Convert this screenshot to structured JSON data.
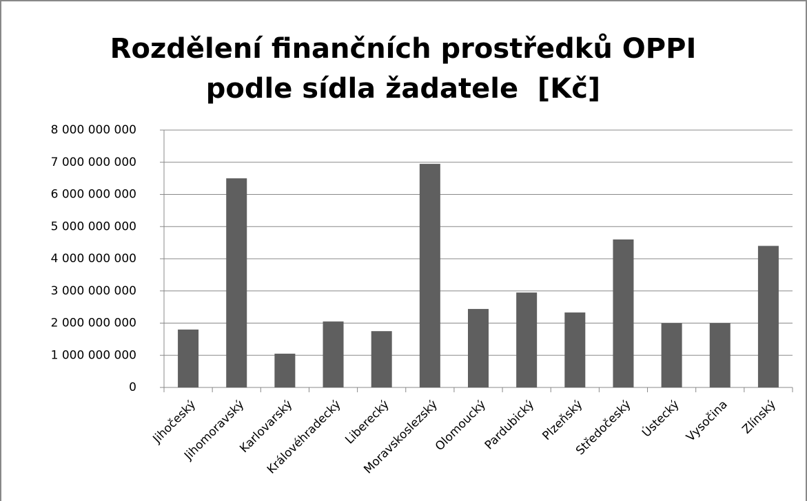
{
  "chart_data": {
    "type": "bar",
    "title": "Rozdělení finančních prostředků OPPI podle sídla žadatele  [Kč]",
    "categories": [
      "Jihočeský",
      "Jihomoravský",
      "Karlovarský",
      "Královéhradecký",
      "Liberecký",
      "Moravskoslezský",
      "Olomoucký",
      "Pardubický",
      "Plzeňský",
      "Středočeský",
      "Ústecký",
      "Vysočina",
      "Zlínský"
    ],
    "values": [
      1800000000,
      6500000000,
      1050000000,
      2050000000,
      1750000000,
      6950000000,
      2440000000,
      2950000000,
      2330000000,
      4600000000,
      2000000000,
      2000000000,
      4400000000
    ],
    "color": "#5f5f5f",
    "ylim": [
      0,
      8000000000
    ],
    "yticks": [
      0,
      {
        "value": 1000000000,
        "label": "1 000 000 000"
      },
      {
        "value": 2000000000,
        "label": "2 000 000 000"
      },
      {
        "value": 3000000000,
        "label": "3 000 000 000"
      },
      {
        "value": 4000000000,
        "label": "4 000 000 000"
      },
      {
        "value": 5000000000,
        "label": "5 000 000 000"
      },
      {
        "value": 6000000000,
        "label": "6 000 000 000"
      },
      {
        "value": 7000000000,
        "label": "7 000 000 000"
      },
      {
        "value": 8000000000,
        "label": "8 000 000 000"
      }
    ],
    "grid": true
  }
}
